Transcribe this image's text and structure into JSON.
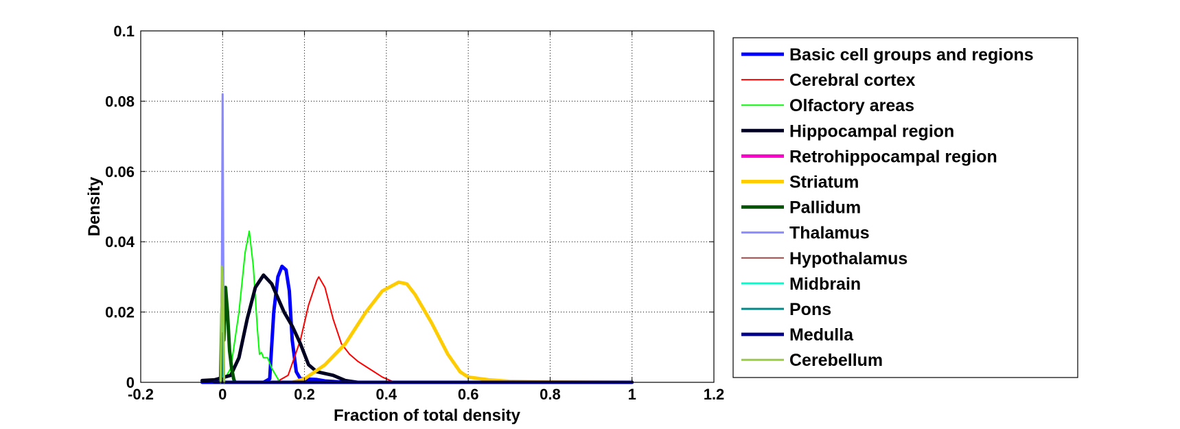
{
  "chart_data": {
    "type": "line",
    "title": "",
    "xlabel": "Fraction of total density",
    "ylabel": "Density",
    "xlim": [
      -0.2,
      1.2
    ],
    "ylim": [
      0,
      0.1
    ],
    "xticks": [
      "-0.2",
      "0",
      "0.2",
      "0.4",
      "0.6",
      "0.8",
      "1",
      "1.2"
    ],
    "yticks": [
      "0",
      "0.02",
      "0.04",
      "0.06",
      "0.08",
      "0.1"
    ],
    "grid": true,
    "legend_position": "outside-right",
    "series": [
      {
        "name": "Basic cell groups and regions",
        "color": "#0000ff",
        "width": 5,
        "points": [
          [
            -0.05,
            0
          ],
          [
            0,
            0
          ],
          [
            0.1,
            0
          ],
          [
            0.115,
            0.001
          ],
          [
            0.125,
            0.02
          ],
          [
            0.135,
            0.03
          ],
          [
            0.145,
            0.033
          ],
          [
            0.155,
            0.032
          ],
          [
            0.163,
            0.026
          ],
          [
            0.17,
            0.012
          ],
          [
            0.18,
            0.003
          ],
          [
            0.19,
            0.001
          ],
          [
            0.23,
            0.0008
          ],
          [
            0.25,
            0.0004
          ],
          [
            0.3,
            0
          ],
          [
            1,
            0
          ]
        ]
      },
      {
        "name": "Cerebral cortex",
        "color": "#ff0000",
        "width": 2,
        "points": [
          [
            0.13,
            0
          ],
          [
            0.16,
            0.002
          ],
          [
            0.19,
            0.012
          ],
          [
            0.21,
            0.022
          ],
          [
            0.23,
            0.029
          ],
          [
            0.235,
            0.03
          ],
          [
            0.25,
            0.027
          ],
          [
            0.27,
            0.018
          ],
          [
            0.29,
            0.011
          ],
          [
            0.31,
            0.008
          ],
          [
            0.33,
            0.006
          ],
          [
            0.35,
            0.0045
          ],
          [
            0.37,
            0.003
          ],
          [
            0.39,
            0.0015
          ],
          [
            0.42,
            0
          ]
        ]
      },
      {
        "name": "Olfactory areas",
        "color": "#00ff00",
        "width": 2,
        "points": [
          [
            0.0,
            0
          ],
          [
            0.02,
            0.004
          ],
          [
            0.04,
            0.02
          ],
          [
            0.055,
            0.037
          ],
          [
            0.065,
            0.043
          ],
          [
            0.075,
            0.033
          ],
          [
            0.085,
            0.015
          ],
          [
            0.09,
            0.008
          ],
          [
            0.095,
            0.0085
          ],
          [
            0.1,
            0.007
          ],
          [
            0.11,
            0.007
          ],
          [
            0.12,
            0.004
          ],
          [
            0.13,
            0.002
          ],
          [
            0.14,
            0
          ]
        ]
      },
      {
        "name": "Hippocampal region",
        "color": "#000022",
        "width": 5,
        "points": [
          [
            -0.05,
            0.0005
          ],
          [
            -0.02,
            0.0007
          ],
          [
            0.02,
            0.002
          ],
          [
            0.04,
            0.007
          ],
          [
            0.06,
            0.018
          ],
          [
            0.08,
            0.027
          ],
          [
            0.1,
            0.0305
          ],
          [
            0.12,
            0.028
          ],
          [
            0.15,
            0.02
          ],
          [
            0.17,
            0.016
          ],
          [
            0.19,
            0.011
          ],
          [
            0.21,
            0.005
          ],
          [
            0.23,
            0.003
          ],
          [
            0.25,
            0.0025
          ],
          [
            0.27,
            0.002
          ],
          [
            0.3,
            0.0005
          ],
          [
            0.33,
            0
          ]
        ]
      },
      {
        "name": "Retrohippocampal region",
        "color": "#ff00cc",
        "width": 5,
        "points": [
          [
            0,
            0
          ],
          [
            0.3,
            0
          ]
        ]
      },
      {
        "name": "Striatum",
        "color": "#ffcc00",
        "width": 5,
        "points": [
          [
            0.17,
            0
          ],
          [
            0.2,
            0.001
          ],
          [
            0.25,
            0.005
          ],
          [
            0.3,
            0.011
          ],
          [
            0.35,
            0.02
          ],
          [
            0.39,
            0.026
          ],
          [
            0.43,
            0.0285
          ],
          [
            0.45,
            0.028
          ],
          [
            0.47,
            0.025
          ],
          [
            0.51,
            0.017
          ],
          [
            0.55,
            0.008
          ],
          [
            0.58,
            0.003
          ],
          [
            0.6,
            0.0015
          ],
          [
            0.65,
            0.0007
          ],
          [
            0.7,
            0.0003
          ],
          [
            0.8,
            0.0001
          ],
          [
            1,
            0
          ]
        ]
      },
      {
        "name": "Pallidum",
        "color": "#005500",
        "width": 5,
        "points": [
          [
            -0.005,
            0
          ],
          [
            0,
            0.03
          ],
          [
            0.003,
            0.012
          ],
          [
            0.007,
            0.027
          ],
          [
            0.012,
            0.02
          ],
          [
            0.017,
            0.009
          ],
          [
            0.022,
            0.004
          ],
          [
            0.027,
            0.001
          ],
          [
            0.03,
            0
          ]
        ]
      },
      {
        "name": "Thalamus",
        "color": "#8888ff",
        "width": 3,
        "points": [
          [
            -0.003,
            0
          ],
          [
            0,
            0.082
          ],
          [
            0.003,
            0
          ]
        ]
      },
      {
        "name": "Hypothalamus",
        "color": "#aa4444",
        "width": 2,
        "points": [
          [
            -0.002,
            0
          ],
          [
            0.0,
            0.006
          ],
          [
            0.002,
            0
          ]
        ]
      },
      {
        "name": "Midbrain",
        "color": "#00ffcc",
        "width": 3,
        "points": [
          [
            -0.003,
            0
          ],
          [
            0,
            0.03
          ],
          [
            0.003,
            0
          ]
        ]
      },
      {
        "name": "Pons",
        "color": "#008888",
        "width": 3,
        "points": [
          [
            -0.002,
            0
          ],
          [
            0.001,
            0.014
          ],
          [
            0.004,
            0
          ]
        ]
      },
      {
        "name": "Medulla",
        "color": "#000088",
        "width": 5,
        "points": [
          [
            -0.02,
            0
          ],
          [
            1,
            0
          ]
        ]
      },
      {
        "name": "Cerebellum",
        "color": "#99cc44",
        "width": 3,
        "points": [
          [
            -0.005,
            0
          ],
          [
            -0.002,
            0.033
          ],
          [
            0.001,
            0.028
          ],
          [
            0.004,
            0
          ]
        ]
      }
    ]
  }
}
